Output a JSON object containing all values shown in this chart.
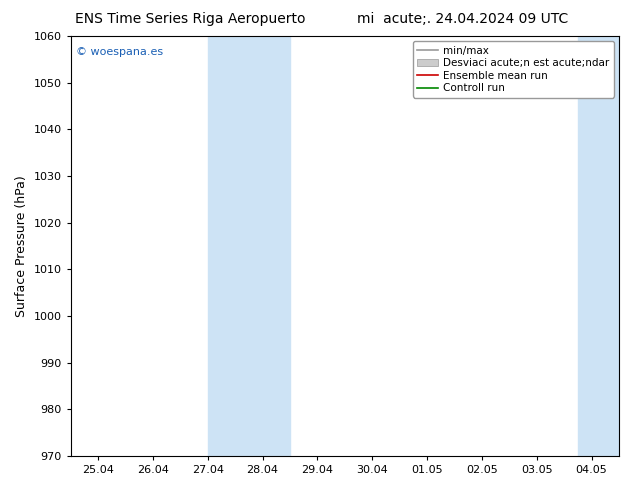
{
  "title_left": "ENS Time Series Riga Aeropuerto",
  "title_right": "mi  acute;. 24.04.2024 09 UTC",
  "ylabel": "Surface Pressure (hPa)",
  "ylim": [
    970,
    1060
  ],
  "yticks": [
    970,
    980,
    990,
    1000,
    1010,
    1020,
    1030,
    1040,
    1050,
    1060
  ],
  "xtick_labels": [
    "25.04",
    "26.04",
    "27.04",
    "28.04",
    "29.04",
    "30.04",
    "01.05",
    "02.05",
    "03.05",
    "04.05"
  ],
  "xtick_positions": [
    0,
    1,
    2,
    3,
    4,
    5,
    6,
    7,
    8,
    9
  ],
  "xlim": [
    -0.5,
    9.5
  ],
  "shaded_bands": [
    {
      "xmin": 2.0,
      "xmax": 3.5,
      "color": "#cde3f5",
      "alpha": 1.0
    },
    {
      "xmin": 8.75,
      "xmax": 9.5,
      "color": "#cde3f5",
      "alpha": 1.0
    }
  ],
  "legend_label_minmax": "min/max",
  "legend_label_std": "Desviaci acute;n est acute;ndar",
  "legend_label_ens": "Ensemble mean run",
  "legend_label_ctrl": "Controll run",
  "legend_color_minmax": "#999999",
  "legend_color_std": "#cccccc",
  "legend_color_ens": "#cc0000",
  "legend_color_ctrl": "#008800",
  "watermark": "© woespana.es",
  "watermark_color": "#1a5fb4",
  "background_color": "#ffffff",
  "plot_bg_color": "#ffffff",
  "spine_color": "#000000",
  "tick_color": "#000000",
  "title_fontsize": 10,
  "axis_label_fontsize": 9,
  "tick_fontsize": 8,
  "legend_fontsize": 7.5,
  "watermark_fontsize": 8
}
